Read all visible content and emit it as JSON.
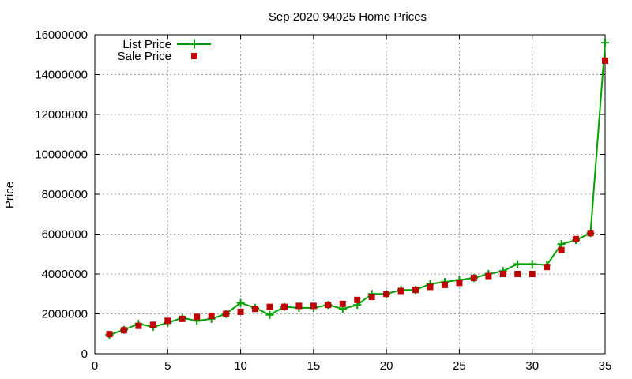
{
  "chart_data": {
    "type": "line",
    "title": "Sep 2020 94025 Home Prices",
    "xlabel": "",
    "ylabel": "Price",
    "xlim": [
      0,
      35
    ],
    "ylim": [
      0,
      16000000
    ],
    "x_ticks": [
      0,
      5,
      10,
      15,
      20,
      25,
      30,
      35
    ],
    "y_ticks": [
      0,
      2000000,
      4000000,
      6000000,
      8000000,
      10000000,
      12000000,
      14000000,
      16000000
    ],
    "grid": true,
    "legend_position": "top-left",
    "x": [
      1,
      2,
      3,
      4,
      5,
      6,
      7,
      8,
      9,
      10,
      11,
      12,
      13,
      14,
      15,
      16,
      17,
      18,
      19,
      20,
      21,
      22,
      23,
      24,
      25,
      26,
      27,
      28,
      29,
      30,
      31,
      32,
      33,
      34,
      35
    ],
    "series": [
      {
        "name": "List Price",
        "style": "line-plus",
        "color": "#00a000",
        "values": [
          950000,
          1200000,
          1500000,
          1350000,
          1550000,
          1800000,
          1650000,
          1750000,
          2000000,
          2550000,
          2300000,
          1950000,
          2350000,
          2300000,
          2300000,
          2450000,
          2250000,
          2450000,
          3000000,
          3000000,
          3200000,
          3200000,
          3500000,
          3600000,
          3700000,
          3800000,
          4000000,
          4150000,
          4500000,
          4500000,
          4450000,
          5500000,
          5700000,
          6050000,
          15600000
        ]
      },
      {
        "name": "Sale Price",
        "style": "square-markers",
        "color": "#c00000",
        "values": [
          980000,
          1180000,
          1400000,
          1450000,
          1650000,
          1750000,
          1850000,
          1900000,
          2000000,
          2100000,
          2250000,
          2350000,
          2350000,
          2400000,
          2400000,
          2450000,
          2500000,
          2700000,
          2850000,
          3000000,
          3150000,
          3200000,
          3350000,
          3450000,
          3550000,
          3800000,
          3900000,
          4000000,
          4000000,
          4000000,
          4350000,
          5200000,
          5750000,
          6050000,
          14700000
        ]
      }
    ]
  }
}
